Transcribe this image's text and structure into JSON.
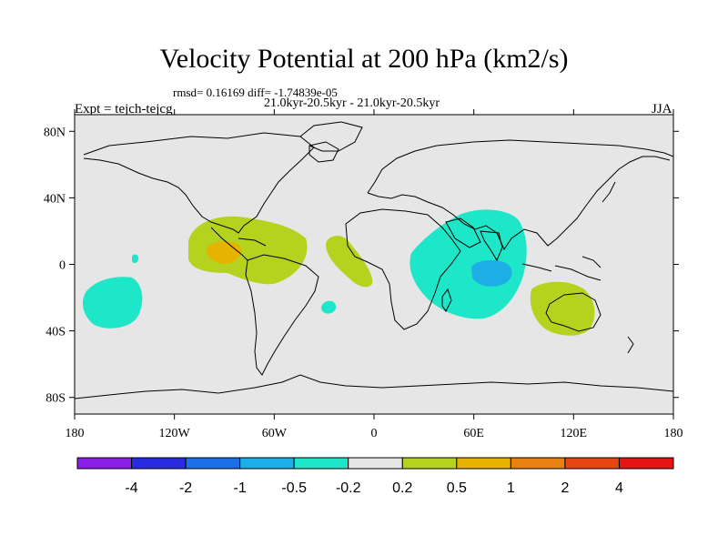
{
  "title": "Velocity Potential at 200 hPa (km2/s)",
  "stats_line": "rmsd= 0.16169 diff= -1.74839e-05",
  "period_line": "21.0kyr-20.5kyr - 21.0kyr-20.5kyr",
  "experiment": "Expt = tejch-tejcg",
  "season": "JJA",
  "lat_ticks": [
    "80N",
    "40N",
    "0",
    "40S",
    "80S"
  ],
  "lon_ticks": [
    "180",
    "120W",
    "60W",
    "0",
    "60E",
    "120E",
    "180"
  ],
  "colorbar": {
    "colors": [
      "#8a1fe6",
      "#2a2ae0",
      "#1e6ee6",
      "#1eaee6",
      "#1ee6c8",
      "#e6e6e6",
      "#b4d21e",
      "#e6b400",
      "#e68214",
      "#e64614",
      "#e61414"
    ],
    "labels": [
      "-4",
      "-2",
      "-1",
      "-0.5",
      "-0.2",
      "0.2",
      "0.5",
      "1",
      "2",
      "4"
    ]
  },
  "anomalies": [
    {
      "name": "central-america-positive",
      "level": 0.5,
      "color": "#b4d21e"
    },
    {
      "name": "central-america-positive-core",
      "level": 1,
      "color": "#e6b400"
    },
    {
      "name": "atlantic-positive",
      "level": 0.5,
      "color": "#b4d21e"
    },
    {
      "name": "indian-ocean-negative",
      "level": -0.2,
      "color": "#1ee6c8"
    },
    {
      "name": "indian-ocean-negative-core",
      "level": -0.5,
      "color": "#1eaee6"
    },
    {
      "name": "australia-positive",
      "level": 0.5,
      "color": "#b4d21e"
    },
    {
      "name": "south-pacific-negative",
      "level": -0.2,
      "color": "#1ee6c8"
    },
    {
      "name": "south-atlantic-negative",
      "level": -0.2,
      "color": "#1ee6c8"
    },
    {
      "name": "pacific-negative-small",
      "level": -0.2,
      "color": "#1ee6c8"
    }
  ]
}
